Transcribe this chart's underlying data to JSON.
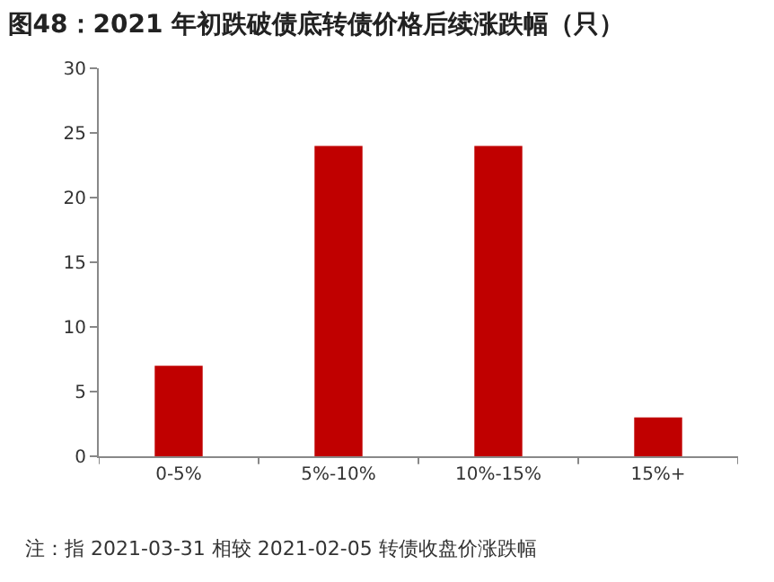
{
  "chart_data": {
    "type": "bar",
    "title": "图48：2021 年初跌破债底转债价格后续涨跌幅（只）",
    "categories": [
      "0-5%",
      "5%-10%",
      "10%-15%",
      "15%+"
    ],
    "values": [
      7,
      24,
      24,
      3
    ],
    "color": "#c00000",
    "ylim": [
      0,
      30
    ],
    "yticks": [
      0,
      5,
      10,
      15,
      20,
      25,
      30
    ],
    "grid": false,
    "annotations": [
      "注：指 2021-03-31 相较 2021-02-05 转债收盘价涨跌幅"
    ]
  }
}
